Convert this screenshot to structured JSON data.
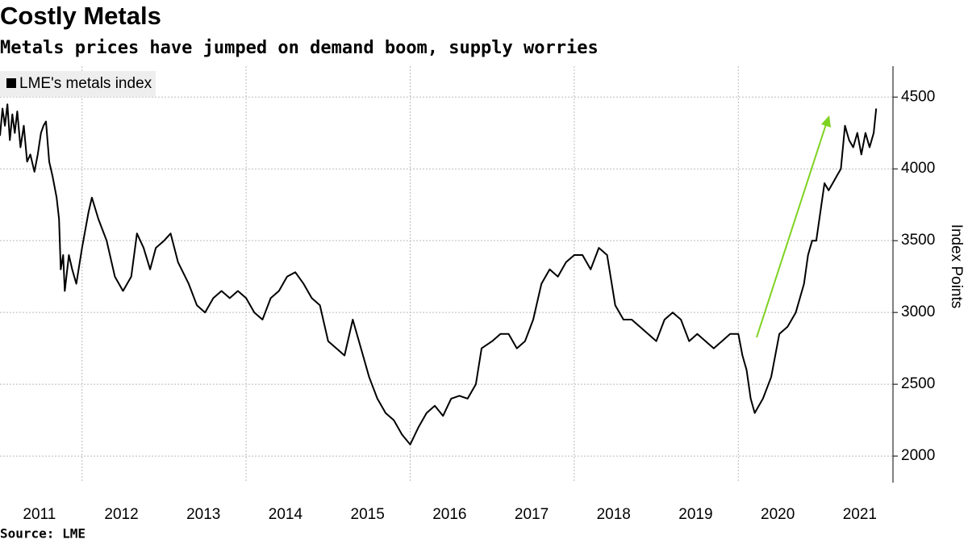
{
  "chart_data": {
    "type": "line",
    "title": "Costly Metals",
    "subtitle": "Metals prices have jumped on demand boom, supply worries",
    "y_label": "Index Points",
    "source": "Source: LME",
    "y_axis_side": "right",
    "grid": true,
    "legend": "top-left",
    "xlim": [
      2011,
      2021.885
    ],
    "xticks": [
      2011,
      2012,
      2013,
      2014,
      2015,
      2016,
      2017,
      2018,
      2019,
      2020,
      2021
    ],
    "xgrid": [
      2012,
      2014,
      2016,
      2018,
      2020
    ],
    "ylim": [
      1815,
      4715
    ],
    "yticks": [
      2000,
      2500,
      3000,
      3500,
      4000,
      4500
    ],
    "series": [
      {
        "name": "LME's metals index",
        "color": "#000000",
        "x": [
          2011.0,
          2011.03,
          2011.06,
          2011.09,
          2011.12,
          2011.15,
          2011.18,
          2011.21,
          2011.25,
          2011.29,
          2011.33,
          2011.37,
          2011.42,
          2011.46,
          2011.5,
          2011.53,
          2011.56,
          2011.6,
          2011.64,
          2011.69,
          2011.72,
          2011.74,
          2011.77,
          2011.79,
          2011.84,
          2011.88,
          2011.93,
          2012.0,
          2012.08,
          2012.12,
          2012.2,
          2012.3,
          2012.4,
          2012.5,
          2012.6,
          2012.67,
          2012.75,
          2012.83,
          2012.9,
          2013.0,
          2013.08,
          2013.17,
          2013.3,
          2013.4,
          2013.5,
          2013.6,
          2013.7,
          2013.8,
          2013.9,
          2014.0,
          2014.1,
          2014.2,
          2014.3,
          2014.4,
          2014.5,
          2014.6,
          2014.7,
          2014.8,
          2014.9,
          2015.0,
          2015.1,
          2015.2,
          2015.3,
          2015.4,
          2015.5,
          2015.6,
          2015.7,
          2015.8,
          2015.9,
          2016.0,
          2016.1,
          2016.2,
          2016.3,
          2016.4,
          2016.5,
          2016.6,
          2016.7,
          2016.8,
          2016.87,
          2017.0,
          2017.1,
          2017.2,
          2017.3,
          2017.4,
          2017.5,
          2017.6,
          2017.7,
          2017.8,
          2017.9,
          2018.0,
          2018.1,
          2018.2,
          2018.3,
          2018.4,
          2018.5,
          2018.6,
          2018.7,
          2018.8,
          2018.9,
          2019.0,
          2019.1,
          2019.2,
          2019.3,
          2019.4,
          2019.5,
          2019.6,
          2019.7,
          2019.8,
          2019.9,
          2020.0,
          2020.05,
          2020.1,
          2020.15,
          2020.2,
          2020.25,
          2020.3,
          2020.4,
          2020.5,
          2020.6,
          2020.7,
          2020.8,
          2020.85,
          2020.9,
          2020.95,
          2021.0,
          2021.05,
          2021.1,
          2021.15,
          2021.2,
          2021.25,
          2021.3,
          2021.35,
          2021.4,
          2021.45,
          2021.5,
          2021.55,
          2021.6,
          2021.65,
          2021.68
        ],
        "values": [
          4230,
          4420,
          4300,
          4450,
          4200,
          4380,
          4250,
          4400,
          4150,
          4300,
          4050,
          4100,
          3980,
          4100,
          4250,
          4300,
          4330,
          4050,
          3950,
          3800,
          3650,
          3300,
          3400,
          3150,
          3400,
          3300,
          3200,
          3450,
          3700,
          3800,
          3650,
          3500,
          3250,
          3150,
          3250,
          3550,
          3450,
          3300,
          3450,
          3500,
          3550,
          3350,
          3200,
          3050,
          3000,
          3100,
          3150,
          3100,
          3150,
          3100,
          3000,
          2950,
          3100,
          3150,
          3250,
          3280,
          3200,
          3100,
          3050,
          2800,
          2750,
          2700,
          2950,
          2750,
          2550,
          2400,
          2300,
          2250,
          2150,
          2080,
          2200,
          2300,
          2350,
          2280,
          2400,
          2420,
          2400,
          2500,
          2750,
          2800,
          2850,
          2850,
          2750,
          2800,
          2950,
          3200,
          3300,
          3250,
          3350,
          3400,
          3400,
          3300,
          3450,
          3400,
          3050,
          2950,
          2950,
          2900,
          2850,
          2800,
          2950,
          3000,
          2950,
          2800,
          2850,
          2800,
          2750,
          2800,
          2850,
          2850,
          2700,
          2600,
          2400,
          2300,
          2350,
          2400,
          2550,
          2850,
          2900,
          3000,
          3200,
          3400,
          3500,
          3500,
          3700,
          3900,
          3850,
          3900,
          3950,
          4000,
          4300,
          4200,
          4150,
          4250,
          4100,
          4250,
          4150,
          4250,
          4420
        ]
      }
    ]
  }
}
